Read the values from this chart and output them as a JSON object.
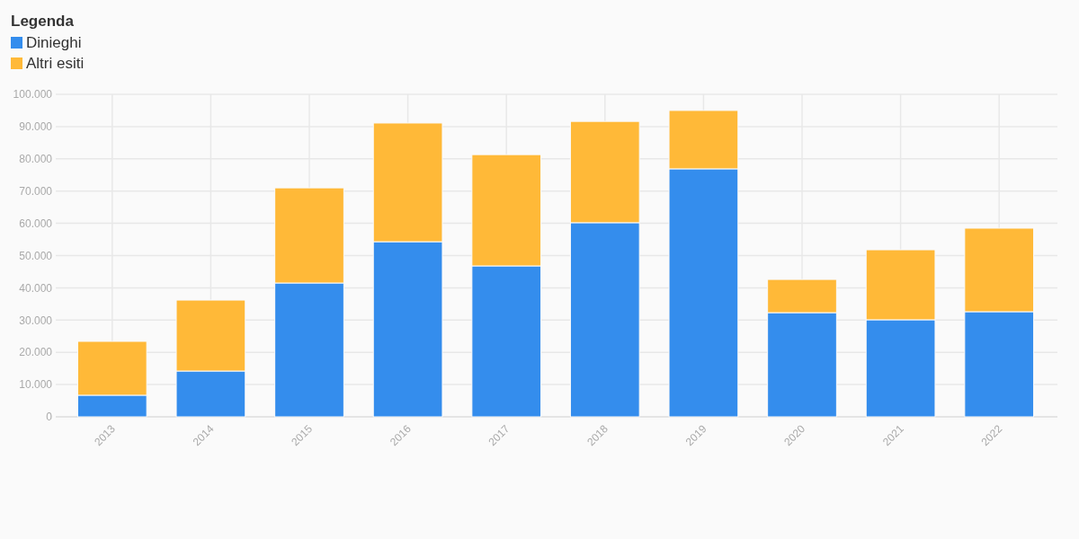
{
  "chart_data": {
    "type": "bar",
    "stacked": true,
    "legend_title": "Legenda",
    "legend": "top left",
    "grid": true,
    "categories": [
      "2013",
      "2014",
      "2015",
      "2016",
      "2017",
      "2018",
      "2019",
      "2020",
      "2021",
      "2022"
    ],
    "series": [
      {
        "name": "Dinieghi",
        "color": "#348ded",
        "values": [
          6700,
          14200,
          41500,
          54300,
          46800,
          60200,
          76900,
          32300,
          30100,
          32600
        ]
      },
      {
        "name": "Altri esiti",
        "color": "#ffb938",
        "values": [
          16700,
          22000,
          29500,
          36800,
          34500,
          31400,
          18100,
          10300,
          21700,
          25900
        ]
      }
    ],
    "ylim": [
      0,
      100000
    ],
    "yticks": [
      0,
      {
        "value": 10000,
        "label": "10.000"
      },
      {
        "value": 20000,
        "label": "20.000"
      },
      {
        "value": 30000,
        "label": "30.000"
      },
      {
        "value": 40000,
        "label": "40.000"
      },
      {
        "value": 50000,
        "label": "50.000"
      },
      {
        "value": 60000,
        "label": "60.000"
      },
      {
        "value": 70000,
        "label": "70.000"
      },
      {
        "value": 80000,
        "label": "80.000"
      },
      {
        "value": 90000,
        "label": "90.000"
      },
      {
        "value": 100000,
        "label": "100.000"
      }
    ]
  }
}
